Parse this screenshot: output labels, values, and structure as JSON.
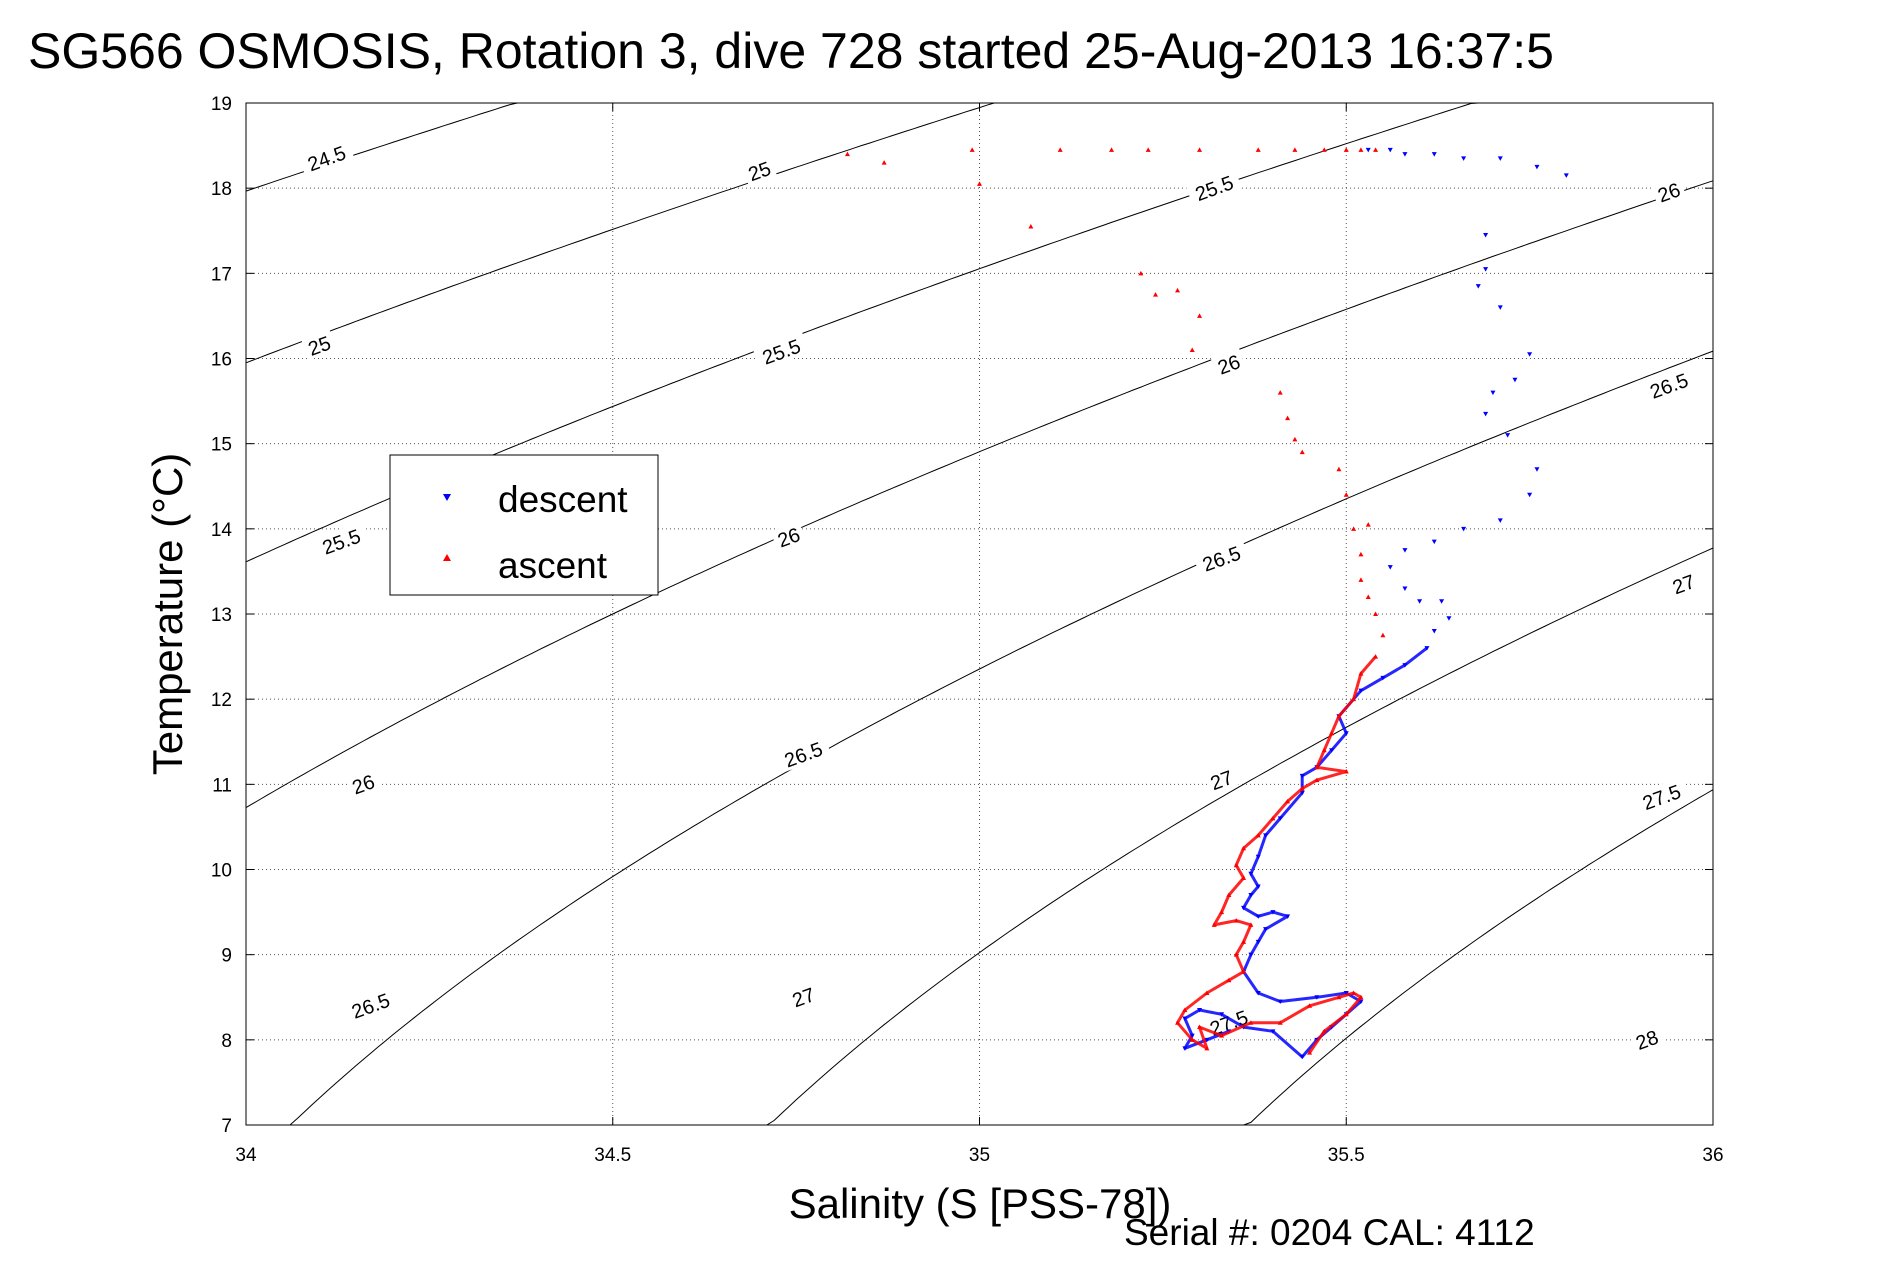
{
  "chart_data": {
    "type": "scatter",
    "title": "SG566 OSMOSIS, Rotation 3, dive 728 started 25-Aug-2013 16:37:5",
    "xlabel": "Salinity (S [PSS-78])",
    "ylabel": "Temperature (°C)",
    "footer": "Serial #: 0204  CAL: 4112",
    "xlim": [
      34,
      36
    ],
    "ylim": [
      7,
      19
    ],
    "x_ticks": [
      34,
      34.5,
      35,
      35.5,
      36
    ],
    "x_tick_labels": [
      "34",
      "34.5",
      "35",
      "35.5",
      "36"
    ],
    "y_ticks": [
      7,
      8,
      9,
      10,
      11,
      12,
      13,
      14,
      15,
      16,
      17,
      18,
      19
    ],
    "y_tick_labels": [
      "7",
      "8",
      "9",
      "10",
      "11",
      "12",
      "13",
      "14",
      "15",
      "16",
      "17",
      "18",
      "19"
    ],
    "grid": true,
    "legend_position": "upper-left",
    "legend": [
      {
        "name": "descent",
        "color": "#0000ff",
        "marker": "triangle-down"
      },
      {
        "name": "ascent",
        "color": "#ff0000",
        "marker": "triangle-up"
      }
    ],
    "density_contours": {
      "levels": [
        24.5,
        25,
        25.5,
        26,
        26.5,
        27,
        27.5,
        28
      ],
      "labels": [
        {
          "text": "24.5",
          "s": 34.11,
          "t": 18.35
        },
        {
          "text": "25",
          "s": 34.1,
          "t": 16.15
        },
        {
          "text": "25",
          "s": 34.7,
          "t": 18.2
        },
        {
          "text": "25.5",
          "s": 34.13,
          "t": 13.85
        },
        {
          "text": "25.5",
          "s": 34.73,
          "t": 16.08
        },
        {
          "text": "25.5",
          "s": 35.32,
          "t": 18.0
        },
        {
          "text": "26",
          "s": 34.16,
          "t": 11.0
        },
        {
          "text": "26",
          "s": 34.74,
          "t": 13.9
        },
        {
          "text": "26",
          "s": 35.34,
          "t": 15.93
        },
        {
          "text": "26",
          "s": 35.94,
          "t": 17.95
        },
        {
          "text": "26.5",
          "s": 34.17,
          "t": 8.4
        },
        {
          "text": "26.5",
          "s": 34.76,
          "t": 11.35
        },
        {
          "text": "26.5",
          "s": 35.33,
          "t": 13.65
        },
        {
          "text": "26.5",
          "s": 35.94,
          "t": 15.68
        },
        {
          "text": "27",
          "s": 34.76,
          "t": 8.5
        },
        {
          "text": "27",
          "s": 35.33,
          "t": 11.05
        },
        {
          "text": "27",
          "s": 35.96,
          "t": 13.35
        },
        {
          "text": "27.5",
          "s": 35.34,
          "t": 8.2
        },
        {
          "text": "27.5",
          "s": 35.93,
          "t": 10.85
        },
        {
          "text": "28",
          "s": 35.91,
          "t": 8.0
        }
      ]
    },
    "series": [
      {
        "name": "descent",
        "color": "#0000ff",
        "marker": "triangle-down",
        "points": [
          [
            35.53,
            18.45
          ],
          [
            35.56,
            18.45
          ],
          [
            35.58,
            18.4
          ],
          [
            35.62,
            18.4
          ],
          [
            35.66,
            18.35
          ],
          [
            35.71,
            18.35
          ],
          [
            35.76,
            18.25
          ],
          [
            35.8,
            18.15
          ],
          [
            35.69,
            17.45
          ],
          [
            35.69,
            17.05
          ],
          [
            35.68,
            16.85
          ],
          [
            35.71,
            16.6
          ],
          [
            35.75,
            16.05
          ],
          [
            35.73,
            15.75
          ],
          [
            35.7,
            15.6
          ],
          [
            35.69,
            15.35
          ],
          [
            35.72,
            15.1
          ],
          [
            35.76,
            14.7
          ],
          [
            35.75,
            14.4
          ],
          [
            35.71,
            14.1
          ],
          [
            35.66,
            14.0
          ],
          [
            35.62,
            13.85
          ],
          [
            35.58,
            13.75
          ],
          [
            35.56,
            13.55
          ],
          [
            35.58,
            13.3
          ],
          [
            35.6,
            13.15
          ],
          [
            35.63,
            13.15
          ],
          [
            35.64,
            12.95
          ],
          [
            35.62,
            12.8
          ],
          [
            35.61,
            12.6
          ],
          [
            35.58,
            12.4
          ],
          [
            35.55,
            12.25
          ],
          [
            35.52,
            12.1
          ],
          [
            35.49,
            11.8
          ],
          [
            35.5,
            11.6
          ],
          [
            35.48,
            11.4
          ],
          [
            35.46,
            11.2
          ],
          [
            35.44,
            11.1
          ],
          [
            35.44,
            10.9
          ],
          [
            35.41,
            10.6
          ],
          [
            35.39,
            10.4
          ],
          [
            35.38,
            10.15
          ],
          [
            35.37,
            9.95
          ],
          [
            35.38,
            9.8
          ],
          [
            35.37,
            9.7
          ],
          [
            35.36,
            9.55
          ],
          [
            35.38,
            9.45
          ],
          [
            35.4,
            9.5
          ],
          [
            35.42,
            9.45
          ],
          [
            35.39,
            9.3
          ],
          [
            35.38,
            9.15
          ],
          [
            35.37,
            9.0
          ],
          [
            35.36,
            8.8
          ],
          [
            35.38,
            8.55
          ],
          [
            35.41,
            8.45
          ],
          [
            35.46,
            8.5
          ],
          [
            35.5,
            8.55
          ],
          [
            35.52,
            8.45
          ],
          [
            35.5,
            8.3
          ],
          [
            35.48,
            8.15
          ],
          [
            35.46,
            8.0
          ],
          [
            35.44,
            7.8
          ],
          [
            35.4,
            8.1
          ],
          [
            35.36,
            8.15
          ],
          [
            35.33,
            8.3
          ],
          [
            35.3,
            8.35
          ],
          [
            35.28,
            8.25
          ],
          [
            35.29,
            8.05
          ],
          [
            35.28,
            7.9
          ],
          [
            35.31,
            8.0
          ],
          [
            35.34,
            8.1
          ]
        ]
      },
      {
        "name": "ascent",
        "color": "#ff0000",
        "marker": "triangle-up",
        "points": [
          [
            34.82,
            18.4
          ],
          [
            34.87,
            18.3
          ],
          [
            34.99,
            18.45
          ],
          [
            35.0,
            18.05
          ],
          [
            35.07,
            17.55
          ],
          [
            35.11,
            18.45
          ],
          [
            35.18,
            18.45
          ],
          [
            35.23,
            18.45
          ],
          [
            35.3,
            18.45
          ],
          [
            35.38,
            18.45
          ],
          [
            35.43,
            18.45
          ],
          [
            35.47,
            18.45
          ],
          [
            35.5,
            18.45
          ],
          [
            35.52,
            18.45
          ],
          [
            35.54,
            18.45
          ],
          [
            35.22,
            17.0
          ],
          [
            35.24,
            16.75
          ],
          [
            35.27,
            16.8
          ],
          [
            35.3,
            16.5
          ],
          [
            35.29,
            16.1
          ],
          [
            35.41,
            15.6
          ],
          [
            35.42,
            15.3
          ],
          [
            35.43,
            15.05
          ],
          [
            35.44,
            14.9
          ],
          [
            35.49,
            14.7
          ],
          [
            35.5,
            14.4
          ],
          [
            35.51,
            14.0
          ],
          [
            35.53,
            14.05
          ],
          [
            35.52,
            13.7
          ],
          [
            35.52,
            13.4
          ],
          [
            35.53,
            13.2
          ],
          [
            35.54,
            13.0
          ],
          [
            35.55,
            12.75
          ],
          [
            35.54,
            12.5
          ],
          [
            35.52,
            12.3
          ],
          [
            35.51,
            12.0
          ],
          [
            35.49,
            11.8
          ],
          [
            35.48,
            11.6
          ],
          [
            35.47,
            11.4
          ],
          [
            35.46,
            11.2
          ],
          [
            35.5,
            11.15
          ],
          [
            35.46,
            11.05
          ],
          [
            35.44,
            10.95
          ],
          [
            35.42,
            10.8
          ],
          [
            35.4,
            10.6
          ],
          [
            35.38,
            10.4
          ],
          [
            35.36,
            10.25
          ],
          [
            35.35,
            10.05
          ],
          [
            35.36,
            9.9
          ],
          [
            35.34,
            9.7
          ],
          [
            35.33,
            9.5
          ],
          [
            35.32,
            9.35
          ],
          [
            35.35,
            9.4
          ],
          [
            35.37,
            9.35
          ],
          [
            35.36,
            9.15
          ],
          [
            35.35,
            9.0
          ],
          [
            35.36,
            8.8
          ],
          [
            35.34,
            8.7
          ],
          [
            35.31,
            8.55
          ],
          [
            35.28,
            8.35
          ],
          [
            35.27,
            8.2
          ],
          [
            35.29,
            8.0
          ],
          [
            35.31,
            7.9
          ],
          [
            35.3,
            8.15
          ],
          [
            35.33,
            8.05
          ],
          [
            35.37,
            8.2
          ],
          [
            35.41,
            8.2
          ],
          [
            35.45,
            8.4
          ],
          [
            35.49,
            8.5
          ],
          [
            35.51,
            8.55
          ],
          [
            35.52,
            8.5
          ],
          [
            35.5,
            8.3
          ],
          [
            35.47,
            8.1
          ],
          [
            35.45,
            7.85
          ]
        ]
      }
    ]
  }
}
